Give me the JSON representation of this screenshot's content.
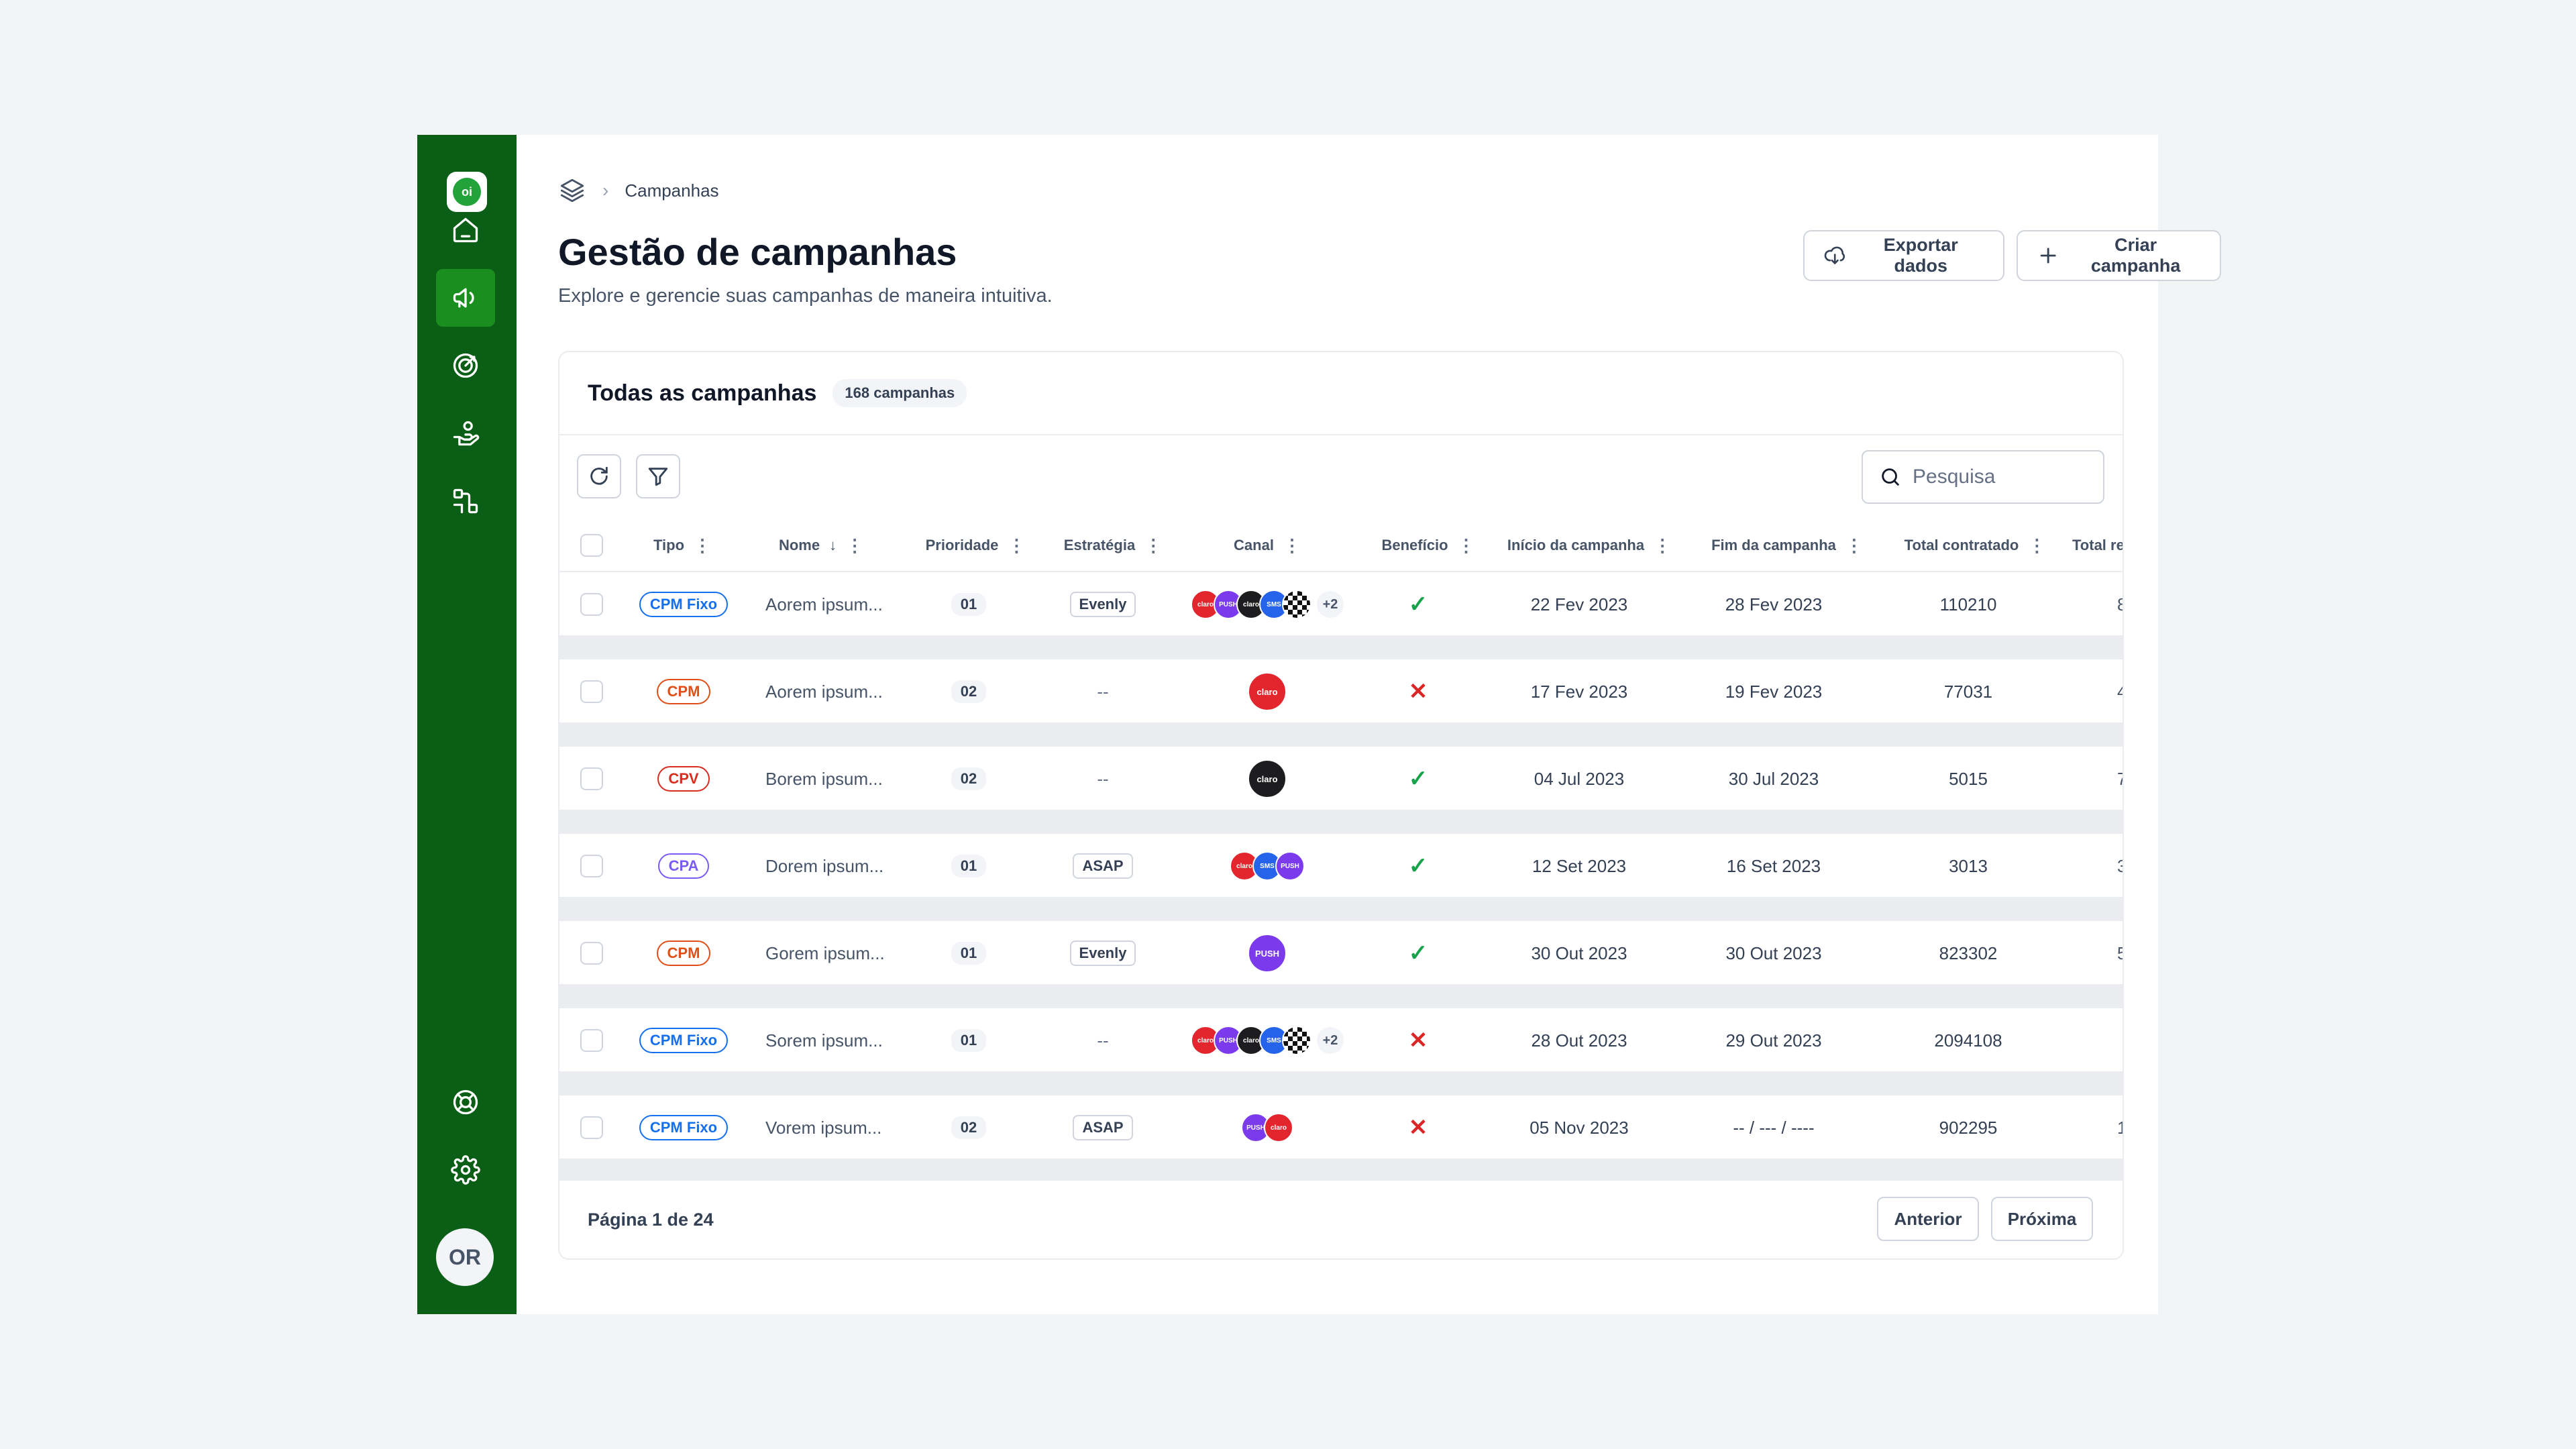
{
  "brand": {
    "logo_text": "oi",
    "primary_color": "#0b5e15",
    "active_color": "#1a8f1f"
  },
  "sidebar": {
    "items": [
      {
        "icon": "home-icon"
      },
      {
        "icon": "megaphone-icon",
        "active": true
      },
      {
        "icon": "target-icon"
      },
      {
        "icon": "hand-coins-icon"
      },
      {
        "icon": "workflow-icon"
      }
    ],
    "bottom_items": [
      {
        "icon": "lifebuoy-icon"
      },
      {
        "icon": "gear-icon"
      }
    ],
    "avatar_initials": "OR"
  },
  "breadcrumb": {
    "icon": "layers-icon",
    "separator": "›",
    "current": "Campanhas"
  },
  "header": {
    "title": "Gestão de campanhas",
    "subtitle": "Explore e gerencie suas campanhas de maneira intuitiva.",
    "export_label": "Exportar dados",
    "create_label": "Criar campanha"
  },
  "card": {
    "title": "Todas as campanhas",
    "count_label": "168 campanhas"
  },
  "search": {
    "placeholder": "Pesquisa",
    "value": ""
  },
  "table": {
    "columns": {
      "tipo": "Tipo",
      "nome": "Nome",
      "prioridade": "Prioridade",
      "estrategia": "Estratégia",
      "canal": "Canal",
      "beneficio": "Benefício",
      "inicio": "Início da campanha",
      "fim": "Fim da campanha",
      "total_contratado": "Total contratado",
      "total_cut": "Total re"
    },
    "rows": [
      {
        "tipo": "CPM Fixo",
        "tipo_color": "#1570ef",
        "nome": "Aorem ipsum...",
        "prioridade": "01",
        "estrategia": "Evenly",
        "canal": [
          "claro",
          "push",
          "dark",
          "sms",
          "check"
        ],
        "canal_more": "+2",
        "beneficio": "✓",
        "inicio": "22 Fev 2023",
        "fim": "28 Fev 2023",
        "total_contratado": "110210",
        "total_cut": "8"
      },
      {
        "tipo": "CPM",
        "tipo_color": "#e04f16",
        "nome": "Aorem ipsum...",
        "prioridade": "02",
        "estrategia": "--",
        "canal": [
          "claro"
        ],
        "canal_more": "",
        "beneficio": "✕",
        "inicio": "17 Fev 2023",
        "fim": "19 Fev 2023",
        "total_contratado": "77031",
        "total_cut": "4"
      },
      {
        "tipo": "CPV",
        "tipo_color": "#d92d20",
        "nome": "Borem ipsum...",
        "prioridade": "02",
        "estrategia": "--",
        "canal": [
          "dark"
        ],
        "canal_more": "",
        "beneficio": "✓",
        "inicio": "04 Jul 2023",
        "fim": "30 Jul 2023",
        "total_contratado": "5015",
        "total_cut": "7"
      },
      {
        "tipo": "CPA",
        "tipo_color": "#7a5af8",
        "nome": "Dorem ipsum...",
        "prioridade": "01",
        "estrategia": "ASAP",
        "canal": [
          "claro",
          "sms",
          "push"
        ],
        "canal_more": "",
        "beneficio": "✓",
        "inicio": "12 Set 2023",
        "fim": "16 Set 2023",
        "total_contratado": "3013",
        "total_cut": "3"
      },
      {
        "tipo": "CPM",
        "tipo_color": "#e04f16",
        "nome": "Gorem ipsum...",
        "prioridade": "01",
        "estrategia": "Evenly",
        "canal": [
          "push"
        ],
        "canal_more": "",
        "beneficio": "✓",
        "inicio": "30 Out 2023",
        "fim": "30 Out 2023",
        "total_contratado": "823302",
        "total_cut": "5"
      },
      {
        "tipo": "CPM Fixo",
        "tipo_color": "#1570ef",
        "nome": "Sorem ipsum...",
        "prioridade": "01",
        "estrategia": "--",
        "canal": [
          "claro",
          "push",
          "dark",
          "sms",
          "check"
        ],
        "canal_more": "+2",
        "beneficio": "✕",
        "inicio": "28 Out 2023",
        "fim": "29 Out 2023",
        "total_contratado": "2094108",
        "total_cut": ""
      },
      {
        "tipo": "CPM Fixo",
        "tipo_color": "#1570ef",
        "nome": "Vorem ipsum...",
        "prioridade": "02",
        "estrategia": "ASAP",
        "canal": [
          "push",
          "claro"
        ],
        "canal_more": "",
        "beneficio": "✕",
        "inicio": "05 Nov 2023",
        "fim": "-- / --- / ----",
        "total_contratado": "902295",
        "total_cut": "1"
      }
    ]
  },
  "pagination": {
    "label": "Página 1 de 24",
    "prev_label": "Anterior",
    "next_label": "Próxima"
  }
}
